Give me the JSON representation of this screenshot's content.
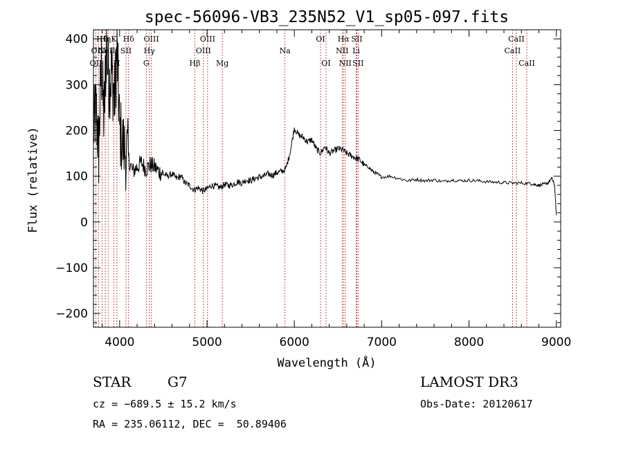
{
  "chart_data": {
    "type": "line",
    "title": "spec-56096-VB3_235N52_V1_sp05-097.fits",
    "xlabel": "Wavelength (Å)",
    "ylabel": "Flux (relative)",
    "xlim": [
      3700,
      9050
    ],
    "ylim": [
      -230,
      420
    ],
    "x_ticks": [
      4000,
      5000,
      6000,
      7000,
      8000,
      9000
    ],
    "y_ticks": [
      -200,
      -100,
      0,
      100,
      200,
      300,
      400
    ],
    "series": [
      {
        "name": "spectrum",
        "x": [
          3700,
          3730,
          3760,
          3790,
          3820,
          3850,
          3880,
          3910,
          3940,
          3970,
          4000,
          4050,
          4100,
          4150,
          4200,
          4250,
          4300,
          4350,
          4400,
          4450,
          4500,
          4550,
          4600,
          4650,
          4700,
          4750,
          4800,
          4850,
          4900,
          4950,
          5000,
          5050,
          5100,
          5150,
          5200,
          5250,
          5300,
          5350,
          5400,
          5450,
          5500,
          5550,
          5600,
          5650,
          5700,
          5750,
          5800,
          5850,
          5900,
          5950,
          6000,
          6050,
          6100,
          6150,
          6200,
          6250,
          6300,
          6350,
          6400,
          6450,
          6500,
          6550,
          6600,
          6650,
          6700,
          6750,
          6800,
          6850,
          6900,
          6950,
          7000,
          7100,
          7200,
          7300,
          7400,
          7500,
          7600,
          7700,
          7800,
          7900,
          8000,
          8100,
          8200,
          8300,
          8400,
          8500,
          8600,
          8700,
          8750,
          8800,
          8850,
          8900,
          8950,
          8980,
          9000
        ],
        "y": [
          200,
          250,
          150,
          350,
          220,
          390,
          300,
          330,
          260,
          380,
          200,
          160,
          140,
          110,
          120,
          130,
          115,
          125,
          120,
          110,
          105,
          100,
          105,
          95,
          100,
          85,
          80,
          70,
          75,
          68,
          72,
          80,
          78,
          75,
          82,
          80,
          82,
          88,
          85,
          92,
          90,
          95,
          98,
          100,
          105,
          102,
          108,
          110,
          115,
          150,
          205,
          190,
          185,
          175,
          180,
          160,
          150,
          165,
          150,
          155,
          160,
          158,
          150,
          145,
          140,
          135,
          125,
          120,
          110,
          105,
          98,
          100,
          95,
          90,
          93,
          90,
          92,
          88,
          92,
          90,
          91,
          90,
          88,
          87,
          86,
          85,
          85,
          84,
          82,
          80,
          82,
          85,
          95,
          80,
          15
        ]
      }
    ],
    "line_labels": [
      {
        "text": "OII",
        "x": 3727,
        "row": 3
      },
      {
        "text": "Hθ",
        "x": 3798,
        "row": 1
      },
      {
        "text": "OIII",
        "x": 3760,
        "row": 2
      },
      {
        "text": "Hη",
        "x": 3835,
        "row": 1
      },
      {
        "text": "NeIII",
        "x": 3869,
        "row": 2
      },
      {
        "text": "K",
        "x": 3933,
        "row": 1
      },
      {
        "text": "H",
        "x": 3968,
        "row": 3
      },
      {
        "text": "SII",
        "x": 4072,
        "row": 2
      },
      {
        "text": "Hδ",
        "x": 4102,
        "row": 1
      },
      {
        "text": "Hγ",
        "x": 4340,
        "row": 2
      },
      {
        "text": "G",
        "x": 4305,
        "row": 3
      },
      {
        "text": "OIII",
        "x": 4363,
        "row": 1
      },
      {
        "text": "Hβ",
        "x": 4861,
        "row": 3
      },
      {
        "text": "OIII",
        "x": 4959,
        "row": 2
      },
      {
        "text": "OIII",
        "x": 5007,
        "row": 1
      },
      {
        "text": "Mg",
        "x": 5175,
        "row": 3
      },
      {
        "text": "Na",
        "x": 5893,
        "row": 2
      },
      {
        "text": "OI",
        "x": 6300,
        "row": 1
      },
      {
        "text": "OI",
        "x": 6363,
        "row": 3
      },
      {
        "text": "NII",
        "x": 6548,
        "row": 2
      },
      {
        "text": "Hα",
        "x": 6563,
        "row": 1
      },
      {
        "text": "NII",
        "x": 6583,
        "row": 3
      },
      {
        "text": "Li",
        "x": 6708,
        "row": 2
      },
      {
        "text": "SII",
        "x": 6717,
        "row": 1
      },
      {
        "text": "SII",
        "x": 6731,
        "row": 3
      },
      {
        "text": "CaII",
        "x": 8498,
        "row": 2
      },
      {
        "text": "CaII",
        "x": 8542,
        "row": 1
      },
      {
        "text": "CaII",
        "x": 8662,
        "row": 3
      }
    ],
    "line_color": "#000000",
    "marker_color": "#b22222"
  },
  "info": {
    "object_class": "STAR",
    "subclass": "G7",
    "survey": "LAMOST DR3",
    "cz": "cz = −689.5 ± 15.2 km/s",
    "obs_date": "Obs-Date: 20120617",
    "coords": "RA = 235.06112, DEC =  50.89406"
  }
}
